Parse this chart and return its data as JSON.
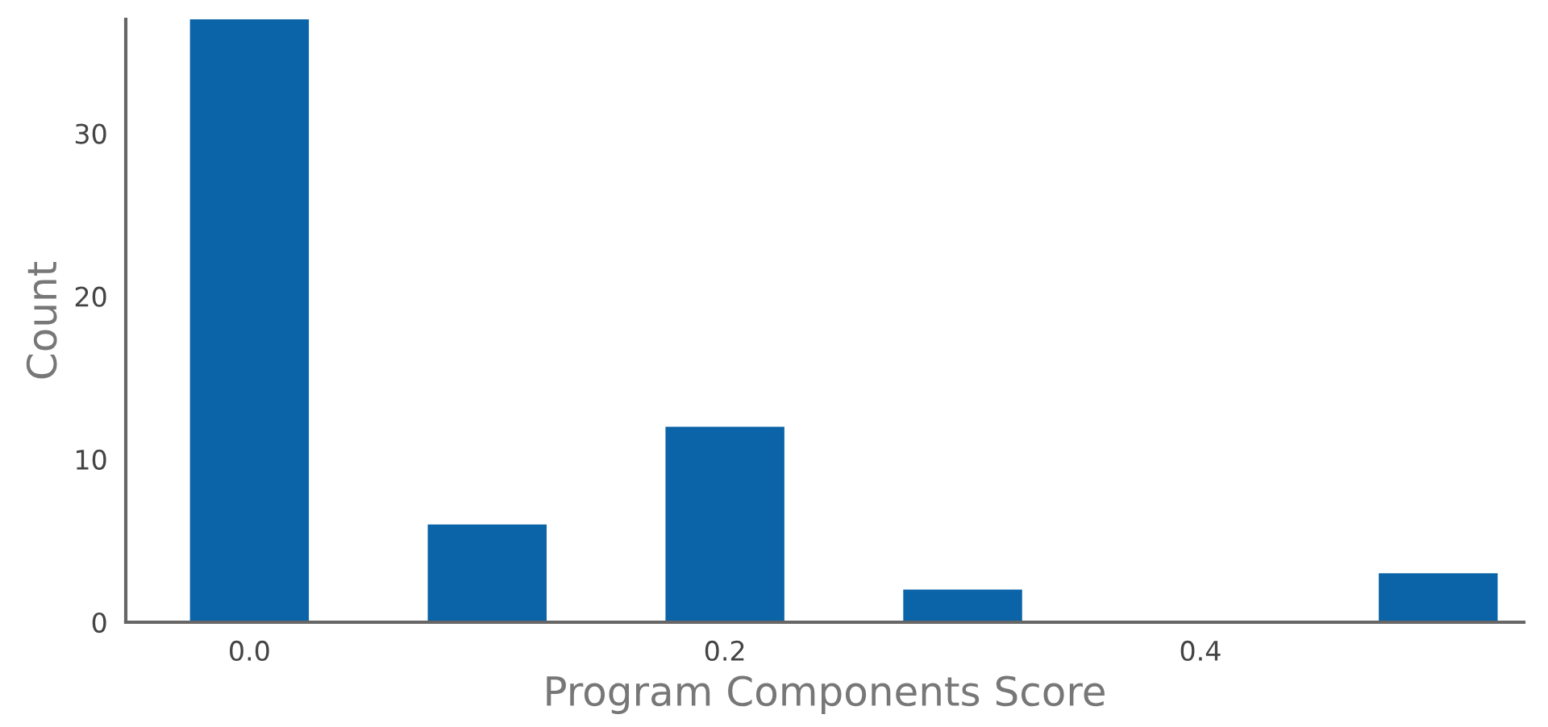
{
  "chart_data": {
    "type": "bar",
    "xlabel": "Program Components Score",
    "ylabel": "Count",
    "x": [
      0.0,
      0.1,
      0.2,
      0.3,
      0.5
    ],
    "values": [
      37,
      6,
      12,
      2,
      3
    ],
    "color": "#0b63a8",
    "xlim": [
      -0.052,
      0.536
    ],
    "xticks": [
      {
        "value": 0.0,
        "label": "0.0"
      },
      {
        "value": 0.2,
        "label": "0.2"
      },
      {
        "value": 0.4,
        "label": "0.4"
      }
    ],
    "ylim": [
      0,
      37
    ],
    "yticks": [
      0,
      10,
      20,
      30
    ],
    "grid": false,
    "legend": false
  }
}
